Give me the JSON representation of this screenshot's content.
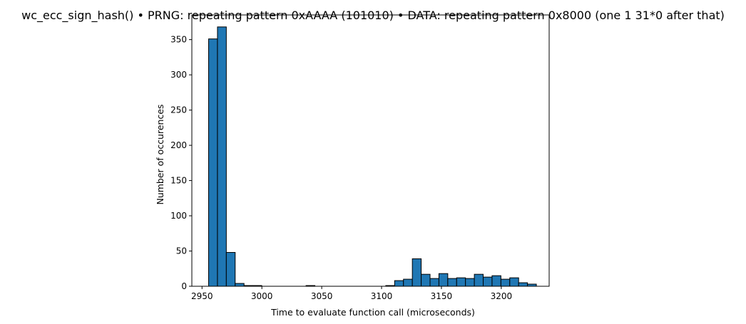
{
  "chart_data": {
    "type": "bar",
    "title": "wc_ecc_sign_hash() • PRNG: repeating pattern 0xAAAA (101010) • DATA: repeating pattern 0x8000 (one 1 31*0 after that)",
    "xlabel": "Time to evaluate function call (microseconds)",
    "ylabel": "Number of occurences",
    "xlim": [
      2941.5,
      2240.0
    ],
    "ylim": [
      0,
      385
    ],
    "xticks": [
      2950,
      3000,
      3050,
      3100,
      3150,
      3200
    ],
    "yticks": [
      0,
      50,
      100,
      150,
      200,
      250,
      300,
      350
    ],
    "grid": false,
    "bar_color": "#1f77b4",
    "edge_color": "#000000",
    "bins": [
      {
        "x0": 2955.5,
        "x1": 2962.9,
        "value": 351
      },
      {
        "x0": 2962.9,
        "x1": 2970.3,
        "value": 368
      },
      {
        "x0": 2970.3,
        "x1": 2977.7,
        "value": 48
      },
      {
        "x0": 2977.7,
        "x1": 2985.1,
        "value": 4
      },
      {
        "x0": 2985.1,
        "x1": 2992.5,
        "value": 1
      },
      {
        "x0": 2992.5,
        "x1": 2999.9,
        "value": 1
      },
      {
        "x0": 3036.9,
        "x1": 3044.3,
        "value": 1
      },
      {
        "x0": 3103.5,
        "x1": 3110.9,
        "value": 1
      },
      {
        "x0": 3110.9,
        "x1": 3118.3,
        "value": 8
      },
      {
        "x0": 3118.3,
        "x1": 3125.7,
        "value": 10
      },
      {
        "x0": 3125.7,
        "x1": 3133.1,
        "value": 39
      },
      {
        "x0": 3133.1,
        "x1": 3140.5,
        "value": 17
      },
      {
        "x0": 3140.5,
        "x1": 3147.9,
        "value": 11
      },
      {
        "x0": 3147.9,
        "x1": 3155.3,
        "value": 18
      },
      {
        "x0": 3155.3,
        "x1": 3162.7,
        "value": 11
      },
      {
        "x0": 3162.7,
        "x1": 3170.1,
        "value": 12
      },
      {
        "x0": 3170.1,
        "x1": 3177.5,
        "value": 11
      },
      {
        "x0": 3177.5,
        "x1": 3184.9,
        "value": 17
      },
      {
        "x0": 3184.9,
        "x1": 3192.3,
        "value": 13
      },
      {
        "x0": 3192.3,
        "x1": 3199.7,
        "value": 15
      },
      {
        "x0": 3199.7,
        "x1": 3207.1,
        "value": 10
      },
      {
        "x0": 3207.1,
        "x1": 3214.5,
        "value": 12
      },
      {
        "x0": 3214.5,
        "x1": 3221.9,
        "value": 5
      },
      {
        "x0": 3221.9,
        "x1": 3229.3,
        "value": 3
      }
    ]
  }
}
